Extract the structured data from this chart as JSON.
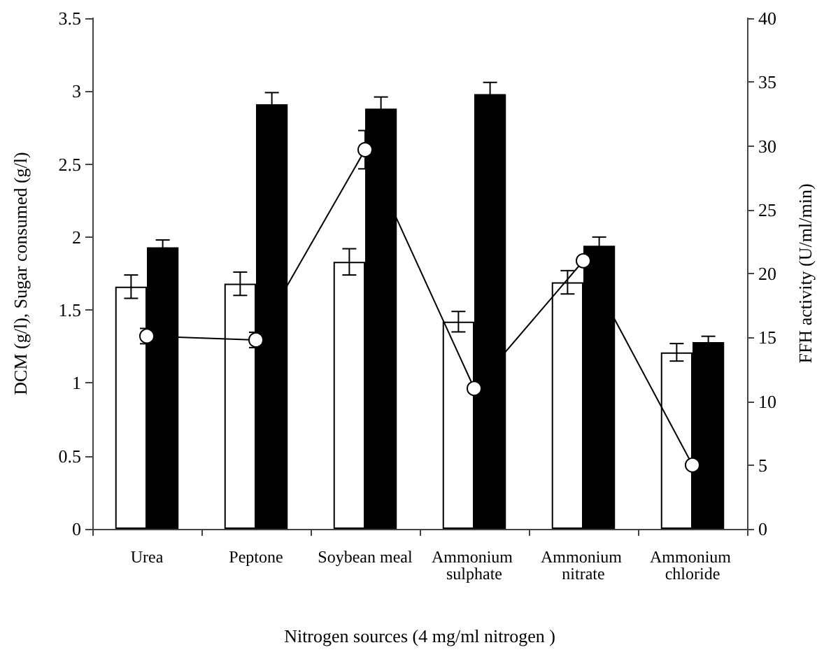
{
  "chart_data": {
    "type": "bar",
    "xlabel": "Nitrogen sources (4 mg/ml nitrogen )",
    "ylabel": "DCM (g/l), Sugar consumed (g/l)",
    "y2label": "FFH activity (U/ml/min)",
    "categories": [
      "Urea",
      "Peptone",
      "Soybean meal",
      "Ammonium sulphate",
      "Ammonium nitrate",
      "Ammonium chloride"
    ],
    "series": [
      {
        "color": "#ffffff",
        "values": [
          1.66,
          1.68,
          1.83,
          1.42,
          1.69,
          1.21
        ],
        "errors": [
          0.08,
          0.08,
          0.09,
          0.07,
          0.08,
          0.06
        ]
      },
      {
        "color": "#000000",
        "values": [
          1.93,
          2.91,
          2.88,
          2.98,
          1.94,
          1.28
        ],
        "errors": [
          0.05,
          0.08,
          0.08,
          0.08,
          0.06,
          0.04
        ]
      },
      {
        "type": "line",
        "axis": "y2",
        "color": "#000000",
        "marker": "circle",
        "values": [
          15.1,
          14.8,
          29.7,
          11.0,
          21.0,
          5.0
        ],
        "errors": [
          0.6,
          0.6,
          1.5,
          null,
          null,
          null
        ]
      }
    ],
    "ylim": [
      0,
      3.5
    ],
    "yticks": [
      0,
      0.5,
      1,
      1.5,
      2,
      2.5,
      3,
      3.5
    ],
    "y2lim": [
      0,
      40
    ],
    "y2ticks": [
      0,
      5,
      10,
      15,
      20,
      25,
      30,
      35,
      40
    ],
    "grid": false
  }
}
